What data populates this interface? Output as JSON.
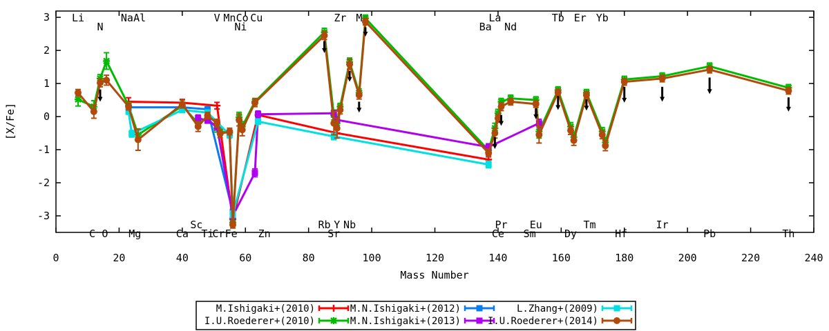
{
  "chart_data": {
    "type": "line",
    "title": "",
    "xlabel": "Mass Number",
    "ylabel": "[X/Fe]",
    "xlim": [
      0,
      240
    ],
    "ylim": [
      -3.5,
      3.19
    ],
    "xticks": [
      0,
      20,
      40,
      60,
      80,
      100,
      120,
      140,
      160,
      180,
      200,
      220,
      240
    ],
    "yticks": [
      -3,
      -2,
      -1,
      0,
      1,
      2,
      3
    ],
    "grid": false,
    "legend_position": "bottom-center",
    "element_labels": [
      {
        "el": "Li",
        "mass": 7,
        "row": "t1"
      },
      {
        "el": "N",
        "mass": 14,
        "row": "t2"
      },
      {
        "el": "Na",
        "mass": 22.5,
        "row": "t1"
      },
      {
        "el": "Al",
        "mass": 26.5,
        "row": "t1"
      },
      {
        "el": "V",
        "mass": 51,
        "row": "t1"
      },
      {
        "el": "Mn",
        "mass": 55,
        "row": "t1"
      },
      {
        "el": "Co",
        "mass": 59,
        "row": "t1"
      },
      {
        "el": "Ni",
        "mass": 58.5,
        "row": "t2"
      },
      {
        "el": "Cu",
        "mass": 63.5,
        "row": "t1"
      },
      {
        "el": "Zr",
        "mass": 90,
        "row": "t1"
      },
      {
        "el": "Mo",
        "mass": 97,
        "row": "t1"
      },
      {
        "el": "La",
        "mass": 139,
        "row": "t1"
      },
      {
        "el": "Ba",
        "mass": 136,
        "row": "t2"
      },
      {
        "el": "Nd",
        "mass": 144,
        "row": "t2"
      },
      {
        "el": "Tb",
        "mass": 159,
        "row": "t1"
      },
      {
        "el": "Er",
        "mass": 166,
        "row": "t1"
      },
      {
        "el": "Yb",
        "mass": 173,
        "row": "t1"
      },
      {
        "el": "C",
        "mass": 11.5,
        "row": "b2"
      },
      {
        "el": "O",
        "mass": 15.5,
        "row": "b2"
      },
      {
        "el": "Mg",
        "mass": 25,
        "row": "b2"
      },
      {
        "el": "Ca",
        "mass": 40,
        "row": "b2"
      },
      {
        "el": "Sc",
        "mass": 44.5,
        "row": "b1"
      },
      {
        "el": "Ti",
        "mass": 48,
        "row": "b2"
      },
      {
        "el": "Cr",
        "mass": 51.5,
        "row": "b2"
      },
      {
        "el": "Fe",
        "mass": 55.5,
        "row": "b2"
      },
      {
        "el": "Zn",
        "mass": 66,
        "row": "b2"
      },
      {
        "el": "Rb",
        "mass": 85,
        "row": "b1"
      },
      {
        "el": "Y",
        "mass": 89,
        "row": "b1"
      },
      {
        "el": "Nb",
        "mass": 93,
        "row": "b1"
      },
      {
        "el": "Sr",
        "mass": 88,
        "row": "b2"
      },
      {
        "el": "Pr",
        "mass": 141,
        "row": "b1"
      },
      {
        "el": "Ce",
        "mass": 140,
        "row": "b2"
      },
      {
        "el": "Eu",
        "mass": 152,
        "row": "b1"
      },
      {
        "el": "Sm",
        "mass": 150,
        "row": "b2"
      },
      {
        "el": "Tm",
        "mass": 169,
        "row": "b1"
      },
      {
        "el": "Dy",
        "mass": 163,
        "row": "b2"
      },
      {
        "el": "Hf",
        "mass": 179,
        "row": "b2"
      },
      {
        "el": "Ir",
        "mass": 192,
        "row": "b1"
      },
      {
        "el": "Pb",
        "mass": 207,
        "row": "b2"
      },
      {
        "el": "Th",
        "mass": 232,
        "row": "b2"
      }
    ],
    "series": [
      {
        "name": "M.Ishigaki+(2010)",
        "color": "#ff0000",
        "marker": "plus",
        "points": [
          [
            23,
            0.45,
            0.12
          ],
          [
            40,
            0.42,
            0.1
          ],
          [
            51,
            0.33,
            0.1
          ],
          [
            56,
            -3.1,
            0.1
          ],
          [
            64,
            0.05,
            0.1
          ],
          [
            89,
            -0.5,
            0.12
          ],
          [
            137,
            -1.3,
            0.12
          ]
        ]
      },
      {
        "name": "I.U.Roederer+(2010)",
        "color": "#00bb00",
        "marker": "star",
        "points": [
          [
            7,
            0.52,
            0.2
          ],
          [
            12,
            0.3,
            0.18
          ],
          [
            14,
            1.15,
            0.12
          ],
          [
            16,
            1.68,
            0.25
          ],
          [
            23,
            0.33,
            0.1
          ],
          [
            26,
            -0.55,
            0.18
          ],
          [
            40,
            0.32,
            0.1
          ],
          [
            45,
            -0.2,
            0.12
          ],
          [
            48,
            -0.05,
            0.1
          ],
          [
            51,
            -0.35,
            0.12
          ],
          [
            52,
            -0.45,
            0.1
          ],
          [
            55,
            -0.5,
            0.1
          ],
          [
            56,
            -3.2,
            0.1
          ],
          [
            58,
            -0.02,
            0.15
          ],
          [
            59,
            -0.3,
            0.15
          ],
          [
            63,
            0.45,
            0.1
          ],
          [
            85,
            2.55,
            0.12
          ],
          [
            88,
            0.05,
            0.15
          ],
          [
            89,
            -0.2,
            0.2
          ],
          [
            90,
            0.3,
            0.1
          ],
          [
            93,
            1.65,
            0.12
          ],
          [
            96,
            0.72,
            0.12
          ],
          [
            98,
            2.97,
            0.1
          ],
          [
            137,
            -1.02,
            0.12
          ],
          [
            139,
            -0.35,
            0.15
          ],
          [
            140,
            0.1,
            0.12
          ],
          [
            141,
            0.45,
            0.1
          ],
          [
            144,
            0.55,
            0.1
          ],
          [
            152,
            0.5,
            0.1
          ],
          [
            153,
            -0.45,
            0.2
          ],
          [
            159,
            0.8,
            0.1
          ],
          [
            163,
            -0.3,
            0.12
          ],
          [
            164,
            -0.62,
            0.15
          ],
          [
            168,
            0.72,
            0.1
          ],
          [
            173,
            -0.45,
            0.12
          ],
          [
            174,
            -0.78,
            0.15
          ],
          [
            180,
            1.12,
            0.1
          ],
          [
            192,
            1.22,
            0.1
          ],
          [
            207,
            1.52,
            0.1
          ],
          [
            232,
            0.87,
            0.1
          ]
        ]
      },
      {
        "name": "M.N.Ishigaki+(2012)",
        "color": "#0a7cf0",
        "marker": "square",
        "points": [
          [
            23,
            0.28,
            0.08
          ],
          [
            40,
            0.28,
            0.08
          ],
          [
            48,
            0.22,
            0.08
          ],
          [
            56,
            -2.88,
            0.1
          ]
        ]
      },
      {
        "name": "M.N.Ishigaki+(2013)",
        "color": "#b000f0",
        "marker": "square",
        "points": [
          [
            45,
            -0.05,
            0.1
          ],
          [
            48,
            -0.12,
            0.08
          ],
          [
            51,
            -0.3,
            0.1
          ],
          [
            56,
            -3.0,
            0.1
          ],
          [
            63,
            -1.7,
            0.12
          ],
          [
            64,
            0.07,
            0.1
          ],
          [
            88,
            0.1,
            0.08
          ],
          [
            89,
            -0.1,
            0.08
          ],
          [
            137,
            -0.92,
            0.1
          ],
          [
            153,
            -0.2,
            0.12
          ]
        ]
      },
      {
        "name": "L.Zhang+(2009)",
        "color": "#00e0e0",
        "marker": "square",
        "points": [
          [
            23,
            0.15,
            0.08
          ],
          [
            24,
            -0.52,
            0.1
          ],
          [
            40,
            0.2,
            0.08
          ],
          [
            48,
            0.12,
            0.08
          ],
          [
            55,
            -0.55,
            0.1
          ],
          [
            56,
            -2.95,
            0.1
          ],
          [
            64,
            -0.15,
            0.08
          ],
          [
            88,
            -0.6,
            0.1
          ],
          [
            137,
            -1.45,
            0.1
          ]
        ]
      },
      {
        "name": "I.U.Roederer+(2014)",
        "color": "#b24a0c",
        "marker": "circle",
        "points": [
          [
            7,
            0.72,
            0.1
          ],
          [
            12,
            0.15,
            0.2
          ],
          [
            14,
            1.02,
            0.12
          ],
          [
            16,
            1.1,
            0.15
          ],
          [
            23,
            0.3,
            0.1
          ],
          [
            26,
            -0.7,
            0.32
          ],
          [
            40,
            0.38,
            0.12
          ],
          [
            45,
            -0.3,
            0.15
          ],
          [
            48,
            0.03,
            0.1
          ],
          [
            51,
            -0.2,
            0.12
          ],
          [
            52,
            -0.52,
            0.12
          ],
          [
            55,
            -0.45,
            0.1
          ],
          [
            56,
            -3.27,
            0.1
          ],
          [
            58,
            -0.1,
            0.18
          ],
          [
            59,
            -0.4,
            0.18
          ],
          [
            63,
            0.42,
            0.12
          ],
          [
            85,
            2.45,
            0.12
          ],
          [
            88,
            -0.2,
            0.35
          ],
          [
            89,
            -0.35,
            0.3
          ],
          [
            90,
            0.2,
            0.12
          ],
          [
            93,
            1.58,
            0.15
          ],
          [
            96,
            0.65,
            0.12
          ],
          [
            98,
            2.87,
            0.1
          ],
          [
            137,
            -1.1,
            0.12
          ],
          [
            139,
            -0.5,
            0.15
          ],
          [
            140,
            -0.05,
            0.12
          ],
          [
            141,
            0.3,
            0.12
          ],
          [
            144,
            0.45,
            0.1
          ],
          [
            152,
            0.38,
            0.1
          ],
          [
            153,
            -0.55,
            0.25
          ],
          [
            159,
            0.73,
            0.1
          ],
          [
            163,
            -0.42,
            0.12
          ],
          [
            164,
            -0.72,
            0.15
          ],
          [
            168,
            0.65,
            0.1
          ],
          [
            173,
            -0.55,
            0.12
          ],
          [
            174,
            -0.88,
            0.15
          ],
          [
            180,
            1.05,
            0.1
          ],
          [
            192,
            1.15,
            0.1
          ],
          [
            207,
            1.42,
            0.1
          ],
          [
            232,
            0.78,
            0.1
          ]
        ]
      }
    ],
    "upper_limits": [
      [
        14,
        0.82,
        0.45
      ],
      [
        85,
        2.28,
        1.92
      ],
      [
        93,
        1.38,
        1.05
      ],
      [
        96,
        0.45,
        0.12
      ],
      [
        98,
        2.7,
        2.42
      ],
      [
        139,
        -0.62,
        -0.98
      ],
      [
        141,
        0.05,
        -0.28
      ],
      [
        152,
        0.25,
        -0.08
      ],
      [
        159,
        0.62,
        0.2
      ],
      [
        168,
        0.52,
        0.18
      ],
      [
        180,
        0.9,
        0.42
      ],
      [
        192,
        0.9,
        0.45
      ],
      [
        207,
        1.18,
        0.68
      ],
      [
        232,
        0.58,
        0.15
      ]
    ],
    "legend_columns": [
      [
        0,
        1
      ],
      [
        2,
        3
      ],
      [
        4,
        5
      ]
    ]
  }
}
